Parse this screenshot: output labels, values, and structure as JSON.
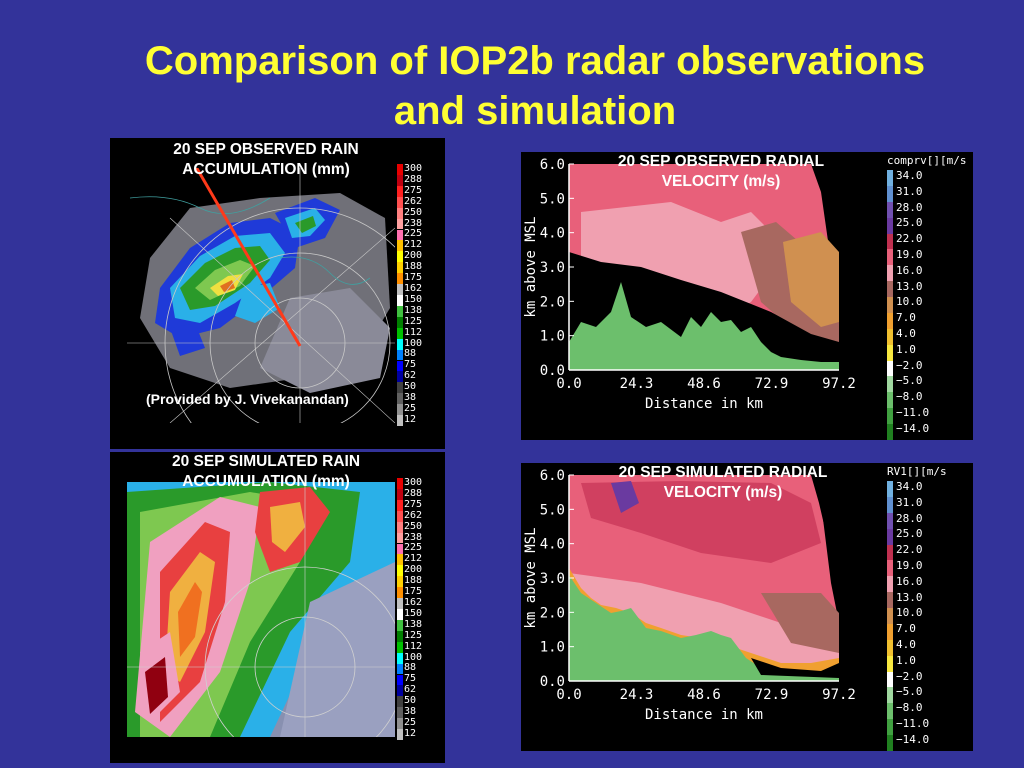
{
  "slide": {
    "title_line1": "Comparison of IOP2b radar observations",
    "title_line2": "and simulation",
    "colors": {
      "background": "#33339a",
      "title": "#ffff33"
    }
  },
  "observed_rain": {
    "caption_line1": "20 SEP OBSERVED RAIN",
    "caption_line2": "ACCUMULATION  (mm)",
    "credit": "(Provided by J. Vivekanandan)"
  },
  "simulated_rain": {
    "caption_line1": "20 SEP SIMULATED RAIN",
    "caption_line2": "ACCUMULATION  (mm)"
  },
  "rain_scale": [
    "300",
    "288",
    "275",
    "262",
    "250",
    "238",
    "225",
    "212",
    "200",
    "188",
    "175",
    "162",
    "150",
    "138",
    "125",
    "112",
    "100",
    "88",
    "75",
    "62",
    "50",
    "38",
    "25",
    "12"
  ],
  "observed_velocity": {
    "caption_line1": "20 SEP OBSERVED RADIAL",
    "caption_line2": "VELOCITY (m/s)",
    "colorbar_title": "comprv[][m/s"
  },
  "simulated_velocity": {
    "caption_line1": "20 SEP SIMULATED RADIAL",
    "caption_line2": "VELOCITY (m/s)",
    "colorbar_title": "RV1[][m/s"
  },
  "velocity_scale": [
    "34.0",
    "31.0",
    "28.0",
    "25.0",
    "22.0",
    "19.0",
    "16.0",
    "13.0",
    "10.0",
    "7.0",
    "4.0",
    "1.0",
    "−2.0",
    "−5.0",
    "−8.0",
    "−11.0",
    "−14.0"
  ],
  "cross_section_axes": {
    "ylabel": "km above MSL",
    "xlabel": "Distance in km",
    "yticks": [
      "6.0",
      "5.0",
      "4.0",
      "3.0",
      "2.0",
      "1.0",
      "0.0"
    ],
    "xticks": [
      "0.0",
      "24.3",
      "48.6",
      "72.9",
      "97.2"
    ]
  }
}
